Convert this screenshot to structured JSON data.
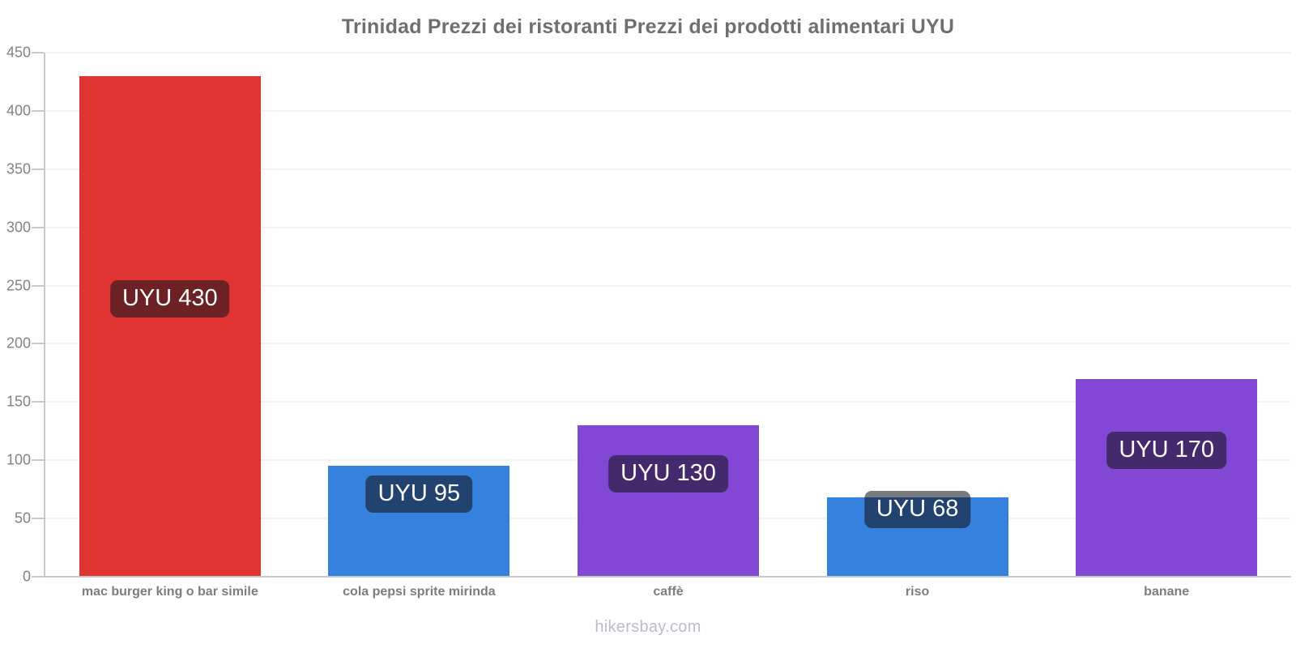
{
  "watermark": "hikersbay.com",
  "colors": {
    "bar_red": "#e03433",
    "bar_blue": "#3781de",
    "bar_purple": "#8347d6",
    "badge_overlay": "rgba(17,19,26,0.56)",
    "badge_text": "#fcfcfd",
    "title_text": "#6f6f6f",
    "axis_line": "#c6cacd",
    "grid_line": "#f2f3f5",
    "tick_text": "#828282",
    "category_text": "#7d7d7d",
    "watermark_text": "#b9bdc6"
  },
  "chart_data": {
    "type": "bar",
    "title": "Trinidad Prezzi dei ristoranti Prezzi dei prodotti alimentari UYU",
    "xlabel": "",
    "ylabel": "",
    "categories": [
      "mac burger king o bar simile",
      "cola pepsi sprite mirinda",
      "caffè",
      "riso",
      "banane"
    ],
    "values": [
      430,
      95,
      130,
      68,
      170
    ],
    "value_labels": [
      "UYU 430",
      "UYU 95",
      "UYU 130",
      "UYU 68",
      "UYU 170"
    ],
    "bar_colors": [
      "#e03433",
      "#3781de",
      "#8347d6",
      "#3781de",
      "#8347d6"
    ],
    "currency": "UYU",
    "ylim": [
      0,
      450
    ],
    "yticks": [
      0,
      50,
      100,
      150,
      200,
      250,
      300,
      350,
      400,
      450
    ],
    "grid": true,
    "legend": false,
    "legend_position": "none"
  }
}
